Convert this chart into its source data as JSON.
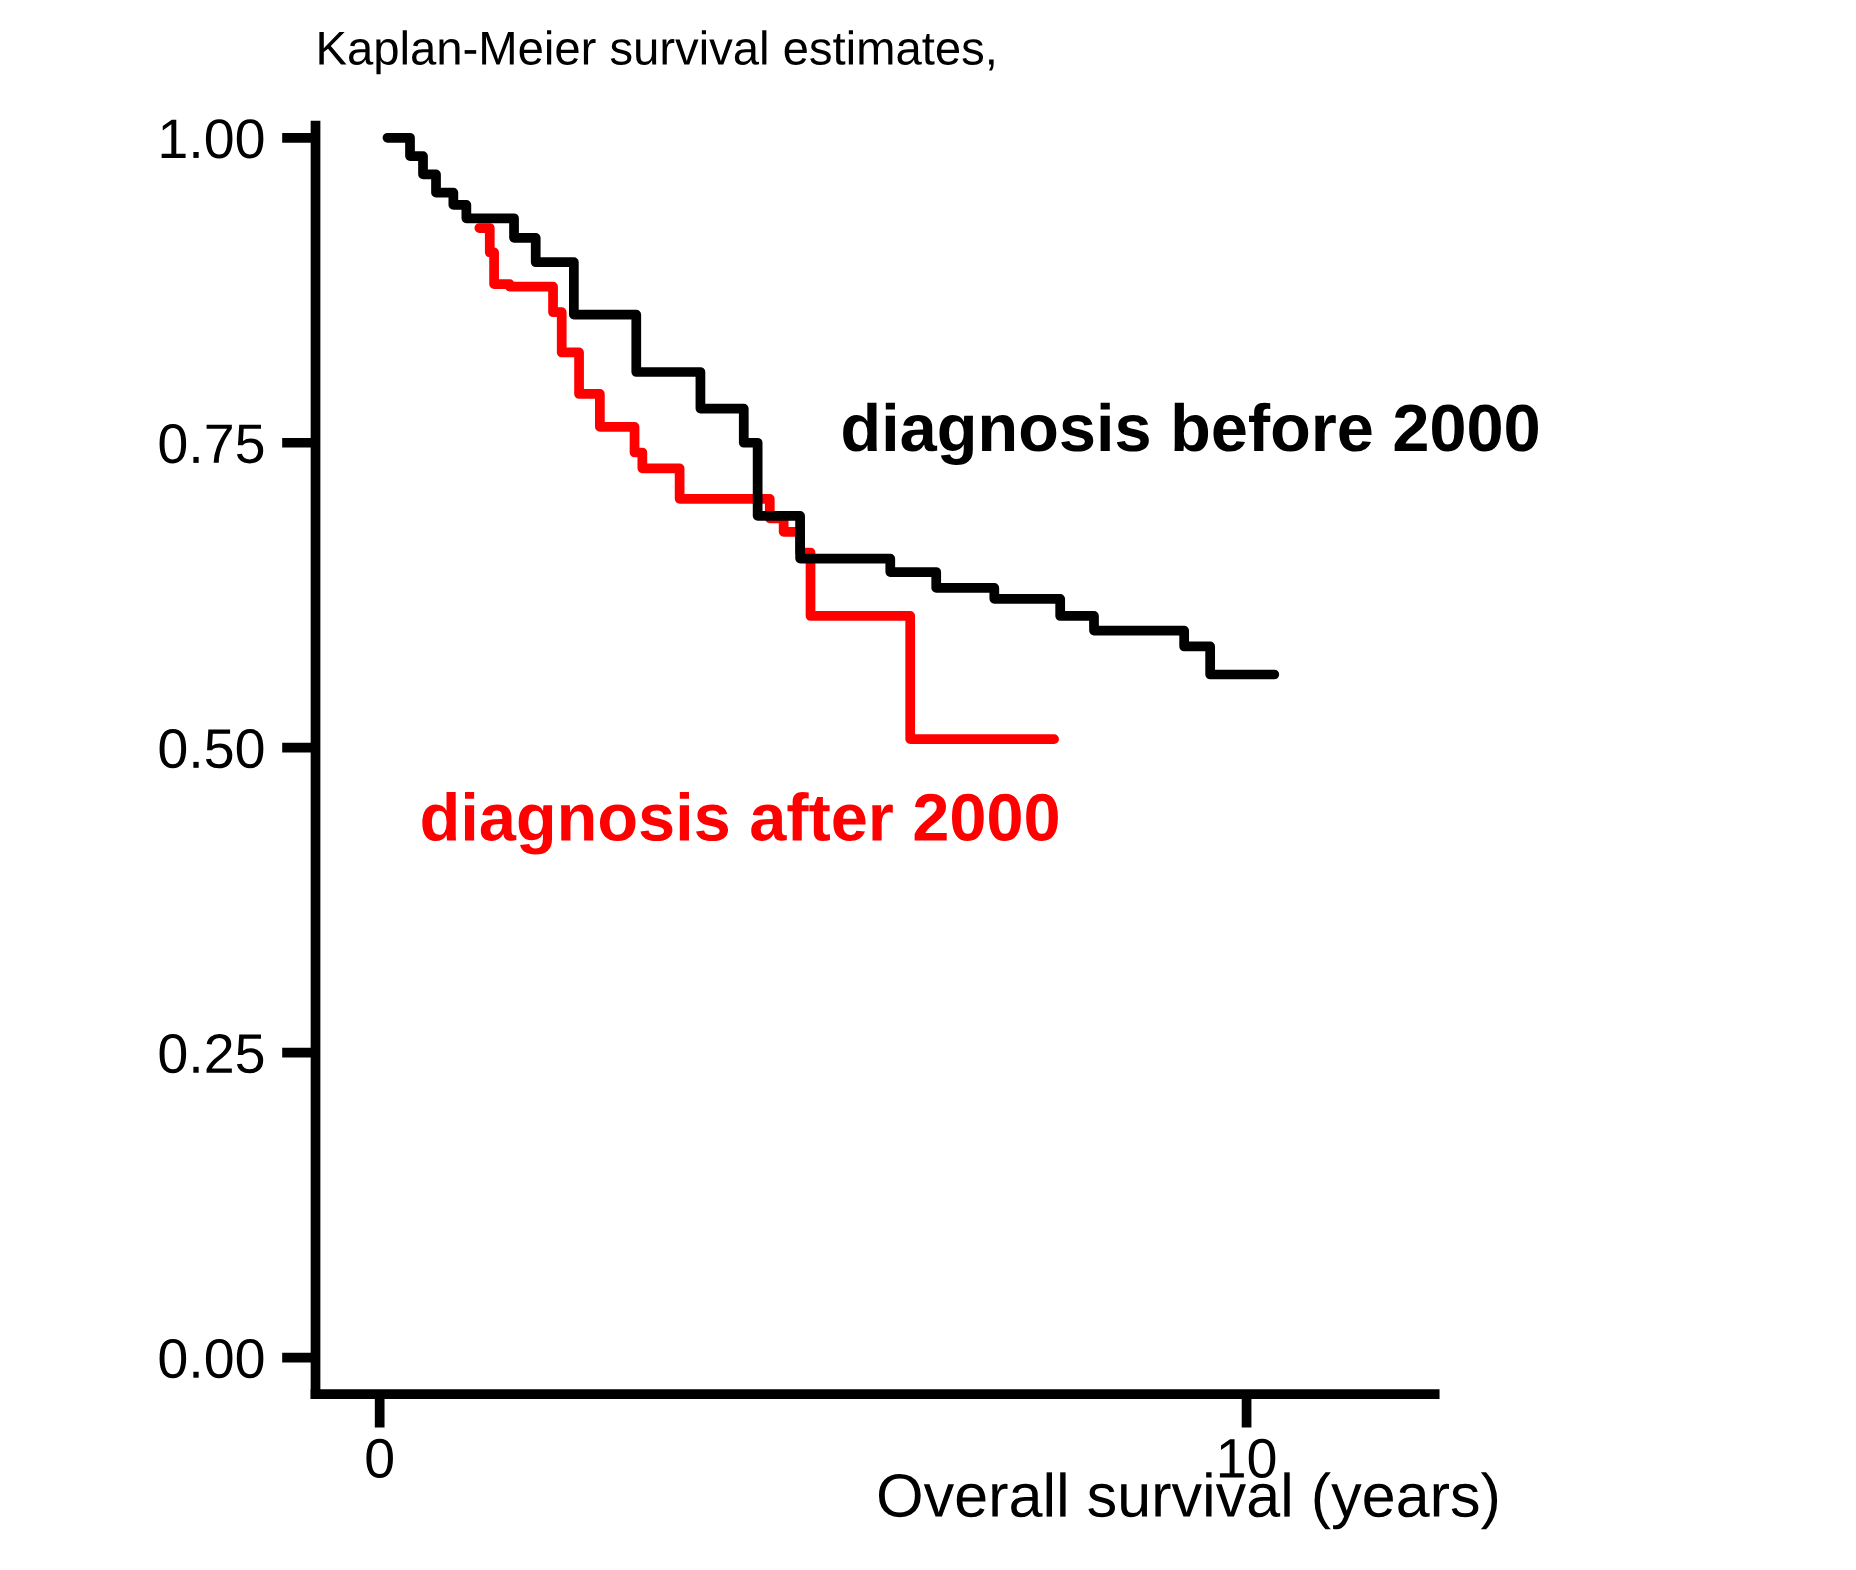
{
  "chart_data": {
    "type": "step",
    "title": "Kaplan-Meier survival estimates,",
    "xlabel": "Overall survival (years)",
    "xlim": [
      -0.74,
      12.17
    ],
    "xticks": [
      0,
      10
    ],
    "ylim": [
      -0.03,
      1.01
    ],
    "yticks": [
      {
        "value": 0,
        "label": "0.00"
      },
      {
        "value": 0.25,
        "label": "0.25"
      },
      {
        "value": 0.5,
        "label": "0.50"
      },
      {
        "value": 0.75,
        "label": "0.75"
      },
      {
        "value": 1,
        "label": "1.00"
      }
    ],
    "grid": false,
    "legend": false,
    "series": [
      {
        "name": "diagnosis before 2000",
        "color": "#000000",
        "x": [
          0.09,
          0.35,
          0.5,
          0.65,
          0.85,
          1.0,
          1.55,
          1.8,
          2.24,
          2.96,
          3.7,
          4.2,
          4.36,
          4.85,
          5.89,
          6.42,
          7.09,
          7.85,
          8.24,
          9.28,
          9.58,
          10.32
        ],
        "values": [
          1.0,
          0.985,
          0.97,
          0.955,
          0.945,
          0.934,
          0.918,
          0.898,
          0.855,
          0.808,
          0.778,
          0.75,
          0.69,
          0.655,
          0.644,
          0.631,
          0.622,
          0.608,
          0.596,
          0.583,
          0.56,
          0.56
        ]
      },
      {
        "name": "diagnosis after 2000",
        "color": "#ff0000",
        "x": [
          1.15,
          1.27,
          1.32,
          1.5,
          2.0,
          2.1,
          2.3,
          2.54,
          2.94,
          3.03,
          3.46,
          4.5,
          4.66,
          4.85,
          4.97,
          6.12,
          7.78
        ],
        "values": [
          0.926,
          0.906,
          0.88,
          0.878,
          0.857,
          0.824,
          0.79,
          0.763,
          0.742,
          0.729,
          0.704,
          0.688,
          0.677,
          0.66,
          0.608,
          0.507,
          0.507
        ]
      }
    ]
  }
}
